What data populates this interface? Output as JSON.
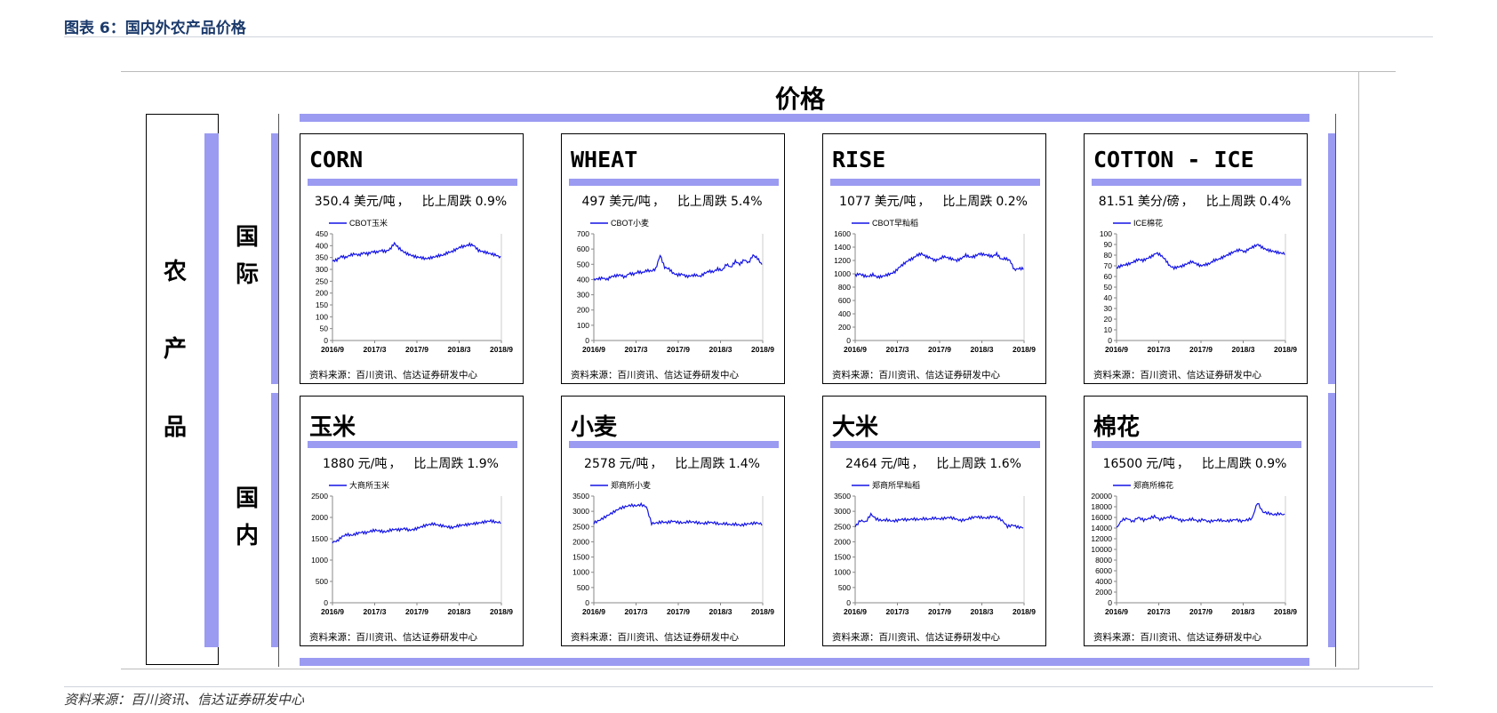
{
  "figure_title": "图表 6：国内外农产品价格",
  "section_header": "价格",
  "left_label": "农产品",
  "row_labels": [
    "国际",
    "国内"
  ],
  "footer_source": "资料来源：百川资讯、信达证券研发中心",
  "series_color": "#1414e6",
  "band_color": "#9b9bf2",
  "panels": [
    {
      "title": "CORN",
      "price": "350.4",
      "unit": "美元/吨",
      "change_label": "比上周跌",
      "change": "0.9%",
      "source": "资料来源：百川资讯、信达证券研发中心"
    },
    {
      "title": "WHEAT",
      "price": "497",
      "unit": "美元/吨",
      "change_label": "比上周跌",
      "change": "5.4%",
      "source": "资料来源：百川资讯、信达证券研发中心"
    },
    {
      "title": "RISE",
      "price": "1077",
      "unit": "美元/吨",
      "change_label": "比上周跌",
      "change": "0.2%",
      "source": "资料来源：百川资讯、信达证券研发中心"
    },
    {
      "title": "COTTON - ICE",
      "price": "81.51",
      "unit": "美分/磅",
      "change_label": "比上周跌",
      "change": "0.4%",
      "source": "资料来源：百川资讯、信达证券研发中心"
    },
    {
      "title": "玉米",
      "price": "1880",
      "unit": "元/吨",
      "change_label": "比上周跌",
      "change": "1.9%",
      "source": "资料来源：百川资讯、信达证券研发中心"
    },
    {
      "title": "小麦",
      "price": "2578",
      "unit": "元/吨",
      "change_label": "比上周跌",
      "change": "1.4%",
      "source": "资料来源：百川资讯、信达证券研发中心"
    },
    {
      "title": "大米",
      "price": "2464",
      "unit": "元/吨",
      "change_label": "比上周跌",
      "change": "1.6%",
      "source": "资料来源：百川资讯、信达证券研发中心"
    },
    {
      "title": "棉花",
      "price": "16500",
      "unit": "元/吨",
      "change_label": "比上周跌",
      "change": "0.9%",
      "source": "资料来源：百川资讯、信达证券研发中心"
    }
  ],
  "chart_data": [
    {
      "type": "line",
      "x_ticks": [
        "2016/9",
        "2017/3",
        "2017/9",
        "2018/3",
        "2018/9"
      ],
      "yticks": [
        0,
        50,
        100,
        150,
        200,
        250,
        300,
        350,
        400,
        450
      ],
      "ylim": [
        0,
        450
      ],
      "series": [
        {
          "name": "CBOT玉米",
          "values": [
            335,
            340,
            355,
            350,
            360,
            365,
            360,
            370,
            365,
            375,
            372,
            380,
            375,
            385,
            410,
            390,
            375,
            365,
            358,
            352,
            350,
            345,
            348,
            352,
            358,
            360,
            370,
            375,
            385,
            395,
            398,
            405,
            400,
            380,
            375,
            370,
            365,
            360,
            350.4
          ]
        }
      ]
    },
    {
      "type": "line",
      "x_ticks": [
        "2016/9",
        "2017/3",
        "2017/9",
        "2018/3",
        "2018/9"
      ],
      "yticks": [
        0,
        100,
        200,
        300,
        400,
        500,
        600,
        700
      ],
      "ylim": [
        0,
        700
      ],
      "series": [
        {
          "name": "CBOT小麦",
          "values": [
            400,
            405,
            410,
            400,
            420,
            425,
            430,
            415,
            440,
            435,
            450,
            445,
            460,
            455,
            470,
            560,
            480,
            470,
            440,
            430,
            435,
            420,
            425,
            430,
            420,
            440,
            455,
            450,
            470,
            460,
            500,
            480,
            520,
            500,
            530,
            510,
            560,
            540,
            497
          ]
        }
      ]
    },
    {
      "type": "line",
      "x_ticks": [
        "2016/9",
        "2017/3",
        "2017/9",
        "2018/3",
        "2018/9"
      ],
      "yticks": [
        0,
        200,
        400,
        600,
        800,
        1000,
        1200,
        1400,
        1600
      ],
      "ylim": [
        0,
        1600
      ],
      "series": [
        {
          "name": "CBOT早籼稻",
          "values": [
            980,
            1000,
            970,
            960,
            990,
            950,
            960,
            980,
            1000,
            1030,
            1100,
            1150,
            1200,
            1230,
            1280,
            1300,
            1260,
            1240,
            1200,
            1220,
            1260,
            1240,
            1220,
            1200,
            1230,
            1280,
            1250,
            1260,
            1300,
            1290,
            1280,
            1260,
            1300,
            1220,
            1230,
            1200,
            1060,
            1080,
            1077
          ]
        }
      ]
    },
    {
      "type": "line",
      "x_ticks": [
        "2016/9",
        "2017/3",
        "2017/9",
        "2018/3",
        "2018/9"
      ],
      "yticks": [
        0,
        10,
        20,
        30,
        40,
        50,
        60,
        70,
        80,
        90,
        100
      ],
      "ylim": [
        0,
        100
      ],
      "series": [
        {
          "name": "ICE棉花",
          "values": [
            68,
            70,
            71,
            72,
            74,
            76,
            75,
            77,
            79,
            82,
            80,
            76,
            70,
            68,
            69,
            70,
            72,
            74,
            72,
            70,
            71,
            72,
            75,
            76,
            78,
            80,
            82,
            84,
            85,
            83,
            86,
            88,
            90,
            87,
            85,
            84,
            83,
            82,
            81.51
          ]
        }
      ]
    },
    {
      "type": "line",
      "x_ticks": [
        "2016/9",
        "2017/3",
        "2017/9",
        "2018/3",
        "2018/9"
      ],
      "yticks": [
        0,
        500,
        1000,
        1500,
        2000,
        2500
      ],
      "ylim": [
        0,
        2500
      ],
      "series": [
        {
          "name": "大商所玉米",
          "values": [
            1420,
            1450,
            1550,
            1600,
            1580,
            1620,
            1650,
            1640,
            1680,
            1700,
            1680,
            1660,
            1700,
            1720,
            1710,
            1740,
            1700,
            1720,
            1760,
            1800,
            1830,
            1850,
            1820,
            1800,
            1780,
            1760,
            1800,
            1820,
            1830,
            1850,
            1860,
            1880,
            1900,
            1920,
            1890,
            1880
          ]
        }
      ]
    },
    {
      "type": "line",
      "x_ticks": [
        "2016/9",
        "2017/3",
        "2017/9",
        "2018/3",
        "2018/9"
      ],
      "yticks": [
        0,
        500,
        1000,
        1500,
        2000,
        2500,
        3000,
        3500
      ],
      "ylim": [
        0,
        3500
      ],
      "series": [
        {
          "name": "郑商所小麦",
          "values": [
            2620,
            2700,
            2800,
            2900,
            3000,
            3100,
            3150,
            3200,
            3180,
            3220,
            3150,
            2600,
            2620,
            2650,
            2630,
            2680,
            2640,
            2620,
            2660,
            2650,
            2620,
            2600,
            2640,
            2620,
            2580,
            2600,
            2560,
            2580,
            2540,
            2580,
            2600,
            2620,
            2578
          ]
        }
      ]
    },
    {
      "type": "line",
      "x_ticks": [
        "2016/9",
        "2017/3",
        "2017/9",
        "2018/3",
        "2018/9"
      ],
      "yticks": [
        0,
        500,
        1000,
        1500,
        2000,
        2500,
        3000,
        3500
      ],
      "ylim": [
        0,
        3500
      ],
      "series": [
        {
          "name": "郑商所早籼稻",
          "values": [
            2500,
            2700,
            2650,
            2900,
            2750,
            2700,
            2720,
            2680,
            2700,
            2740,
            2720,
            2750,
            2730,
            2760,
            2740,
            2780,
            2750,
            2770,
            2800,
            2760,
            2700,
            2720,
            2780,
            2820,
            2800,
            2780,
            2820,
            2800,
            2700,
            2500,
            2550,
            2480,
            2464
          ]
        }
      ]
    },
    {
      "type": "line",
      "x_ticks": [
        "2016/9",
        "2017/3",
        "2017/9",
        "2018/3",
        "2018/9"
      ],
      "yticks": [
        0,
        2000,
        4000,
        6000,
        8000,
        10000,
        12000,
        14000,
        16000,
        18000,
        20000
      ],
      "ylim": [
        0,
        20000
      ],
      "series": [
        {
          "name": "郑商所棉花",
          "values": [
            14000,
            15500,
            15800,
            15200,
            16000,
            15500,
            15800,
            16200,
            15600,
            15900,
            16100,
            15800,
            15400,
            15500,
            15700,
            15300,
            15600,
            15200,
            15400,
            15500,
            15300,
            15400,
            15600,
            15300,
            15500,
            15800,
            18800,
            17000,
            16800,
            16500,
            16700,
            16500
          ]
        }
      ]
    }
  ]
}
